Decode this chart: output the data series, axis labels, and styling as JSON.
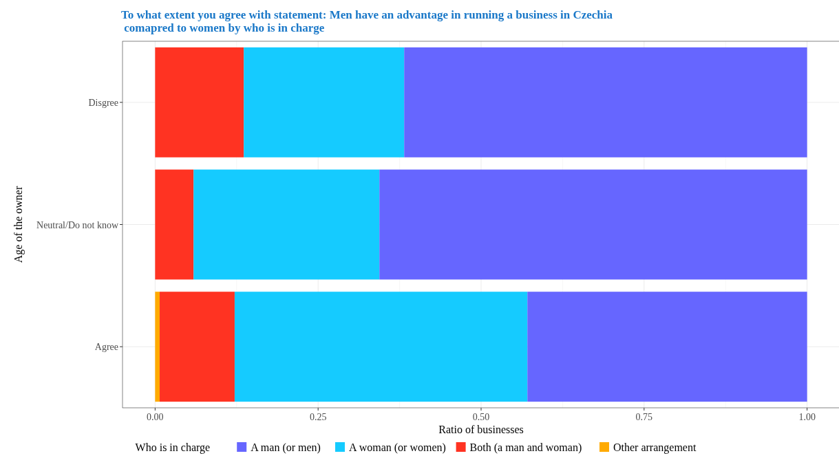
{
  "chart_data": {
    "type": "bar",
    "orientation": "horizontal",
    "stacked": true,
    "title": "To what extent you agree with statement: Men have an advantage in running a business in Czechia\n comapred to women by who is in charge",
    "xlabel": "Ratio of businesses",
    "ylabel": "Age of the owner",
    "legend_title": "Who is in charge",
    "legend": "bottom",
    "grid": true,
    "categories": [
      "Disgree",
      "Neutral/Do not know",
      "Agree"
    ],
    "xlim": [
      -0.05,
      1.05
    ],
    "xticks": [
      {
        "value": 0,
        "label": "0.00"
      },
      {
        "value": 0.25,
        "label": "0.25"
      },
      {
        "value": 0.5,
        "label": "0.50"
      },
      {
        "value": 0.75,
        "label": "0.75"
      },
      {
        "value": 1,
        "label": "1.00"
      }
    ],
    "series": [
      {
        "name": "Other arrangement",
        "color": "#ffaa00",
        "values": [
          0,
          0,
          0.007
        ]
      },
      {
        "name": "Both (a man and woman)",
        "color": "#ff3322",
        "values": [
          0.136,
          0.059,
          0.115
        ]
      },
      {
        "name": "A woman (or women)",
        "color": "#15cbff",
        "values": [
          0.246,
          0.285,
          0.449
        ]
      },
      {
        "name": "A man (or men)",
        "color": "#6666ff",
        "values": [
          0.618,
          0.656,
          0.429
        ]
      }
    ]
  }
}
